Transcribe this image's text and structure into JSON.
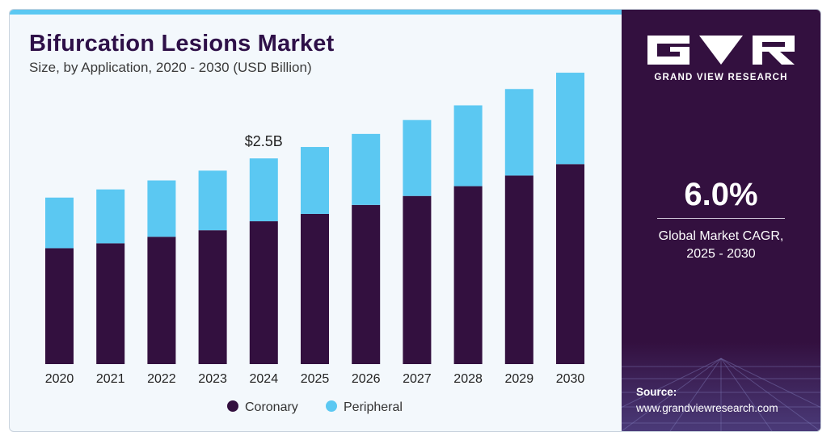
{
  "header": {
    "title": "Bifurcation Lesions Market",
    "subtitle": "Size, by Application, 2020 - 2030 (USD Billion)"
  },
  "chart_data": {
    "type": "bar",
    "stacked": true,
    "categories": [
      "2020",
      "2021",
      "2022",
      "2023",
      "2024",
      "2025",
      "2026",
      "2027",
      "2028",
      "2029",
      "2030"
    ],
    "series": [
      {
        "name": "Coronary",
        "color": "#33103f",
        "values": [
          1.42,
          1.48,
          1.56,
          1.64,
          1.75,
          1.84,
          1.95,
          2.06,
          2.18,
          2.31,
          2.45
        ]
      },
      {
        "name": "Peripheral",
        "color": "#5bc8f2",
        "values": [
          0.62,
          0.66,
          0.69,
          0.73,
          0.77,
          0.82,
          0.87,
          0.93,
          0.99,
          1.06,
          1.12
        ]
      }
    ],
    "annotations": [
      {
        "category": "2024",
        "text": "$2.5B"
      }
    ],
    "legend": "bottom-center",
    "ylim": [
      0,
      3.6
    ],
    "grid": false,
    "xlabel": "",
    "ylabel": ""
  },
  "sidebar": {
    "logo_text": "GRAND VIEW RESEARCH",
    "cagr_value": "6.0%",
    "cagr_label_line1": "Global Market CAGR,",
    "cagr_label_line2": "2025 - 2030",
    "source_label": "Source:",
    "source_url": "www.grandviewresearch.com"
  },
  "colors": {
    "accent": "#5bc8f2",
    "brand_dark": "#33103f",
    "background": "#f3f8fc"
  }
}
